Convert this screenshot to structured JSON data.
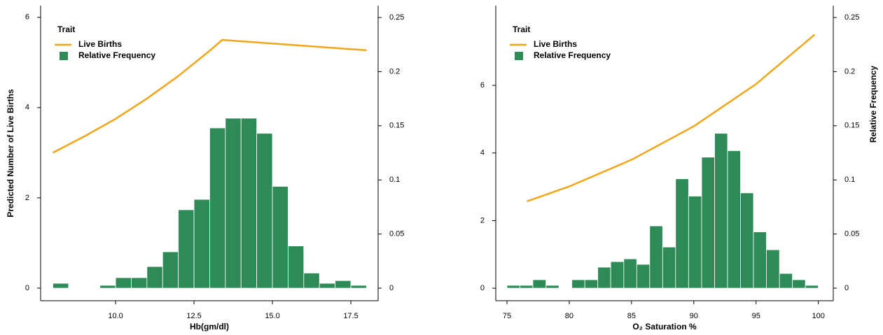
{
  "chart_data": [
    {
      "type": "histogram",
      "legend_title": "Trait",
      "legend": "upper left",
      "xlabel": "Hb(gm/dl)",
      "ylabel": "Predicted Number of Live Births",
      "bins": [
        8.0,
        8.5,
        9.0,
        9.5,
        10.0,
        10.5,
        11.0,
        11.5,
        12.0,
        12.5,
        13.0,
        13.5,
        14.0,
        14.5,
        15.0,
        15.5,
        16.0,
        16.5,
        17.0,
        17.5,
        18.0
      ],
      "series": [
        {
          "name": "Live Births",
          "type": "line",
          "color": "#f2a516",
          "x": [
            8,
            9,
            10,
            11,
            12,
            13,
            13.4,
            18
          ],
          "values": [
            3.0,
            3.36,
            3.75,
            4.2,
            4.7,
            5.26,
            5.5,
            5.27
          ]
        },
        {
          "name": "Relative Frequency",
          "type": "histogram",
          "color": "#2e8b57",
          "axis": "y2",
          "values": [
            0.0045,
            0,
            0,
            0.0026,
            0.0097,
            0.0097,
            0.02,
            0.0336,
            0.0724,
            0.082,
            0.148,
            0.157,
            0.157,
            0.143,
            0.094,
            0.039,
            0.014,
            0.0045,
            0.007,
            0.0026
          ]
        }
      ],
      "xlim": [
        7.61,
        18.37
      ],
      "xticks": [
        {
          "value": 10,
          "label": "10.0"
        },
        12.5,
        {
          "value": 15,
          "label": "15.0"
        },
        17.5
      ],
      "ylim": [
        -0.28,
        6.26
      ],
      "yticks": [
        0,
        2,
        4,
        6
      ],
      "y2lim": [
        -0.0116,
        0.261
      ],
      "y2ticks": [
        0,
        0.05,
        0.1,
        0.15,
        0.2,
        0.25
      ]
    },
    {
      "type": "histogram",
      "legend_title": "Trait",
      "legend": "upper left",
      "xlabel": "O₂ Saturation %",
      "y2label": "Relative Frequency",
      "bins": [
        75.0,
        76.04,
        77.08,
        78.13,
        79.17,
        80.21,
        81.25,
        82.29,
        83.33,
        84.38,
        85.42,
        86.46,
        87.5,
        88.54,
        89.58,
        90.63,
        91.67,
        92.71,
        93.75,
        94.79,
        95.83,
        96.88,
        97.92,
        98.96,
        100.0
      ],
      "series": [
        {
          "name": "Live Births",
          "type": "line",
          "color": "#f2a516",
          "x": [
            76.6,
            80,
            85,
            90,
            95,
            99.7
          ],
          "values": [
            2.57,
            3.01,
            3.8,
            4.79,
            6.04,
            7.5
          ]
        },
        {
          "name": "Relative Frequency",
          "type": "histogram",
          "color": "#2e8b57",
          "axis": "y2",
          "values": [
            0.0026,
            0.0026,
            0.0078,
            0.0026,
            0,
            0.0078,
            0.0078,
            0.0194,
            0.0245,
            0.0271,
            0.022,
            0.0575,
            0.038,
            0.101,
            0.085,
            0.121,
            0.143,
            0.127,
            0.088,
            0.052,
            0.0355,
            0.0136,
            0.0078,
            0.0026
          ]
        }
      ],
      "xlim": [
        74.1,
        101.2
      ],
      "xticks": [
        75,
        80,
        85,
        90,
        95,
        100
      ],
      "ylim": [
        -0.37,
        8.36
      ],
      "yticks": [
        0,
        2,
        4,
        6
      ],
      "y2lim": [
        -0.0116,
        0.261
      ],
      "y2ticks": [
        0,
        0.05,
        0.1,
        0.15,
        0.2,
        0.25
      ]
    }
  ]
}
